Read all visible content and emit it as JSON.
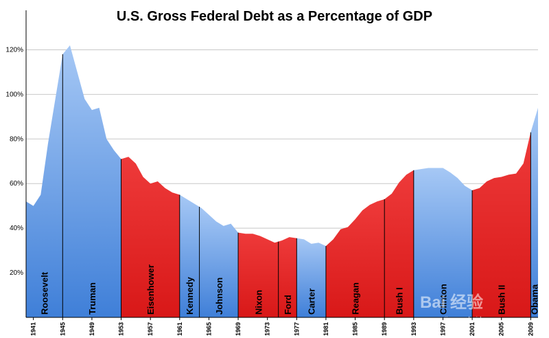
{
  "chart_data": {
    "type": "area",
    "title": "U.S. Gross Federal Debt as a Percentage of GDP",
    "xlabel": "",
    "ylabel": "",
    "xlim": [
      1940,
      2010
    ],
    "ylim": [
      0,
      130
    ],
    "y_ticks": [
      20,
      40,
      60,
      80,
      100,
      120
    ],
    "y_tick_labels": [
      "20%",
      "40%",
      "60%",
      "80%",
      "100%",
      "120%"
    ],
    "x_ticks": [
      1941,
      1945,
      1949,
      1953,
      1957,
      1961,
      1965,
      1969,
      1973,
      1977,
      1981,
      1985,
      1989,
      1993,
      1997,
      2001,
      2005,
      2009
    ],
    "x_tick_labels": [
      "1941",
      "1945",
      "1949",
      "1953",
      "1957",
      "1961",
      "1965",
      "1969",
      "1973",
      "1977",
      "1981",
      "1985",
      "1989",
      "1993",
      "1997",
      "2001",
      "2005",
      "2009"
    ],
    "grid": true,
    "colors": {
      "democrat": "#6fa0e6",
      "republican": "#e8262c",
      "democrat_light": "#a6c8f5",
      "republican_dark": "#c81414"
    },
    "series": [
      {
        "x": [
          1940,
          1941,
          1942,
          1943,
          1944,
          1945,
          1946,
          1947,
          1948,
          1949,
          1950,
          1951,
          1952,
          1953,
          1954,
          1955,
          1956,
          1957,
          1958,
          1959,
          1960,
          1961,
          1962,
          1963,
          1964,
          1965,
          1966,
          1967,
          1968,
          1969,
          1970,
          1971,
          1972,
          1973,
          1974,
          1975,
          1976,
          1977,
          1978,
          1979,
          1980,
          1981,
          1982,
          1983,
          1984,
          1985,
          1986,
          1987,
          1988,
          1989,
          1990,
          1991,
          1992,
          1993,
          1994,
          1995,
          1996,
          1997,
          1998,
          1999,
          2000,
          2001,
          2002,
          2003,
          2004,
          2005,
          2006,
          2007,
          2008,
          2009,
          2010
        ],
        "values": [
          52,
          50,
          55,
          78,
          98,
          118,
          122,
          110,
          98,
          93,
          94,
          80,
          75,
          71,
          72,
          69,
          63,
          60,
          61,
          58,
          56,
          55,
          53,
          51,
          49,
          46,
          43,
          41,
          42,
          38,
          37.5,
          37.5,
          36.5,
          35,
          33.5,
          34.5,
          36,
          35.5,
          35,
          33,
          33.5,
          32,
          35,
          39.5,
          40.5,
          44,
          48,
          50.5,
          52,
          53,
          55.5,
          60.5,
          64,
          66,
          66.5,
          67,
          67,
          67,
          65,
          62.5,
          59,
          57,
          58,
          61,
          62.5,
          63,
          64,
          64.5,
          69,
          83,
          94
        ]
      }
    ],
    "presidents": [
      {
        "name": "Roosevelt",
        "start": 1940,
        "end": 1945,
        "party": "D"
      },
      {
        "name": "Truman",
        "start": 1945,
        "end": 1953,
        "party": "D"
      },
      {
        "name": "Eisenhower",
        "start": 1953,
        "end": 1961,
        "party": "R"
      },
      {
        "name": "Kennedy",
        "start": 1961,
        "end": 1963.7,
        "party": "D"
      },
      {
        "name": "Johnson",
        "start": 1963.7,
        "end": 1969,
        "party": "D"
      },
      {
        "name": "Nixon",
        "start": 1969,
        "end": 1974.5,
        "party": "R"
      },
      {
        "name": "Ford",
        "start": 1974.5,
        "end": 1977,
        "party": "R"
      },
      {
        "name": "Carter",
        "start": 1977,
        "end": 1981,
        "party": "D"
      },
      {
        "name": "Reagan",
        "start": 1981,
        "end": 1989,
        "party": "R"
      },
      {
        "name": "Bush I",
        "start": 1989,
        "end": 1993,
        "party": "R"
      },
      {
        "name": "Clinton",
        "start": 1993,
        "end": 2001,
        "party": "D"
      },
      {
        "name": "Bush II",
        "start": 2001,
        "end": 2009,
        "party": "R"
      },
      {
        "name": "Obama",
        "start": 2009,
        "end": 2010,
        "party": "D"
      }
    ],
    "watermark": "Bai 经验",
    "watermark_url": "jingyan.baidu.com"
  }
}
